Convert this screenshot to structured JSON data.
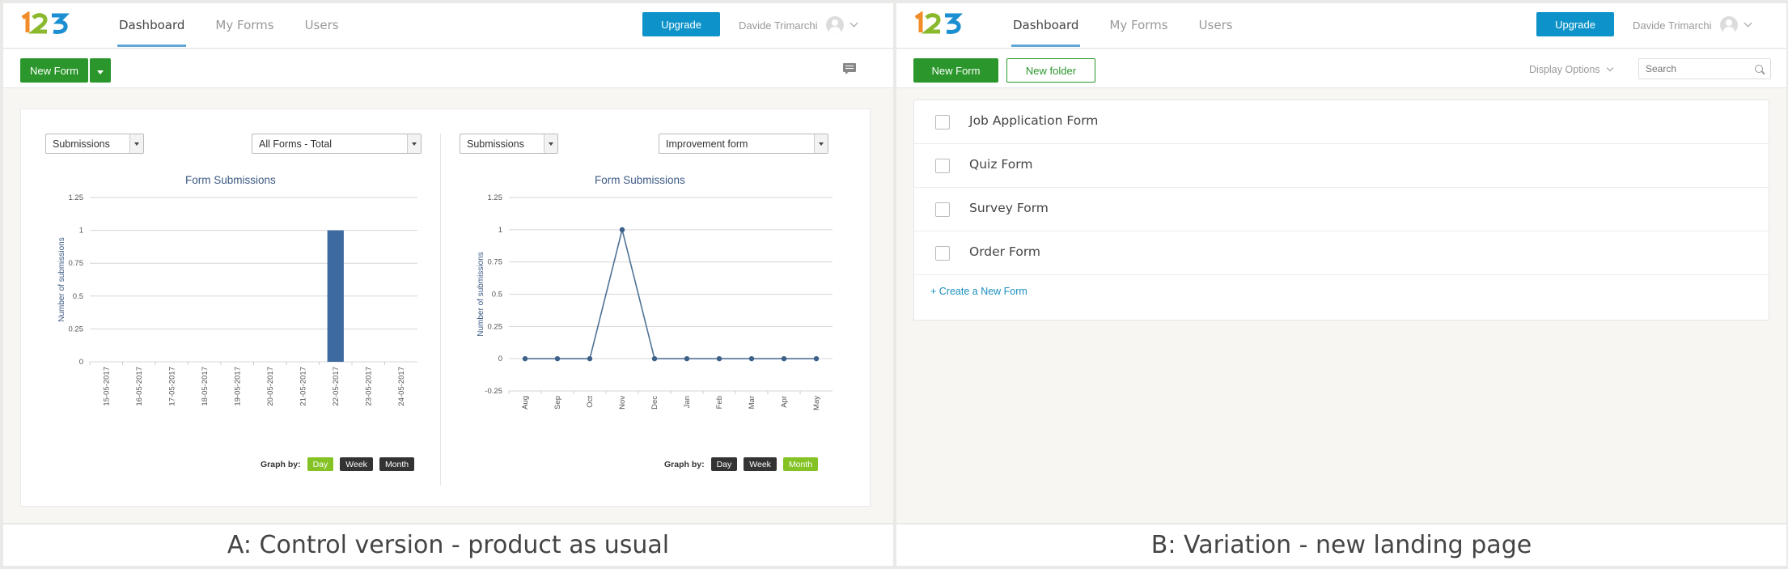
{
  "panel_a": {
    "nav": [
      {
        "label": "Dashboard"
      },
      {
        "label": "My Forms"
      },
      {
        "label": "Users"
      }
    ],
    "upgrade_label": "Upgrade",
    "user_name": "Davide Trimarchi",
    "new_form_label": "New Form",
    "chart_left": {
      "metric_select": "Submissions",
      "form_select": "All Forms - Total",
      "graph_by_label": "Graph by:",
      "graph_by": [
        {
          "label": "Day",
          "active": true
        },
        {
          "label": "Week",
          "active": false
        },
        {
          "label": "Month",
          "active": false
        }
      ]
    },
    "chart_right": {
      "metric_select": "Submissions",
      "form_select": "Improvement form",
      "graph_by_label": "Graph by:",
      "graph_by": [
        {
          "label": "Day",
          "active": false
        },
        {
          "label": "Week",
          "active": false
        },
        {
          "label": "Month",
          "active": true
        }
      ]
    }
  },
  "panel_b": {
    "nav": [
      {
        "label": "Dashboard"
      },
      {
        "label": "My Forms"
      },
      {
        "label": "Users"
      }
    ],
    "upgrade_label": "Upgrade",
    "user_name": "Davide Trimarchi",
    "new_form_label": "New Form",
    "new_folder_label": "New folder",
    "display_options_label": "Display Options",
    "search_placeholder": "Search",
    "forms": [
      {
        "name": "Job Application Form"
      },
      {
        "name": "Quiz Form"
      },
      {
        "name": "Survey Form"
      },
      {
        "name": "Order Form"
      }
    ],
    "create_link": "+ Create a New Form"
  },
  "captions": {
    "a": "A: Control version - product as usual",
    "b": "B: Variation - new landing page"
  },
  "colors": {
    "green": "#2b962b",
    "blue_button": "#0d93c9",
    "bar": "#3d6aa0",
    "line": "#4f7296",
    "toggle_active": "#84c225"
  },
  "chart_data": [
    {
      "type": "bar",
      "title": "Form Submissions",
      "ylabel": "Number of submissions",
      "ylim": [
        0,
        1.25
      ],
      "yticks": [
        "0",
        "0.25",
        "0.5",
        "0.75",
        "1",
        "1.25"
      ],
      "categories": [
        "15-05-2017",
        "16-05-2017",
        "17-05-2017",
        "18-05-2017",
        "19-05-2017",
        "20-05-2017",
        "21-05-2017",
        "22-05-2017",
        "23-05-2017",
        "24-05-2017"
      ],
      "values": [
        0,
        0,
        0,
        0,
        0,
        0,
        0,
        1,
        0,
        0
      ],
      "grid": true
    },
    {
      "type": "line",
      "title": "Form Submissions",
      "ylabel": "Number of submissions",
      "ylim": [
        -0.25,
        1.25
      ],
      "yticks": [
        "-0.25",
        "0",
        "0.25",
        "0.5",
        "0.75",
        "1",
        "1.25"
      ],
      "categories": [
        "Aug",
        "Sep",
        "Oct",
        "Nov",
        "Dec",
        "Jan",
        "Feb",
        "Mar",
        "Apr",
        "May"
      ],
      "values": [
        0,
        0,
        0,
        1,
        0,
        0,
        0,
        0,
        0,
        0
      ],
      "grid": true
    }
  ]
}
